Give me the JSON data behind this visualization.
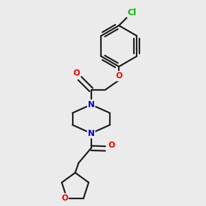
{
  "background_color": "#ebebeb",
  "bond_color": "#1a1a1a",
  "atom_colors": {
    "O": "#ff0000",
    "N": "#0000cc",
    "Cl": "#00bb00",
    "C": "#1a1a1a"
  },
  "figsize": [
    3.0,
    3.0
  ],
  "dpi": 100,
  "lw": 1.6,
  "fontsize": 8.5
}
